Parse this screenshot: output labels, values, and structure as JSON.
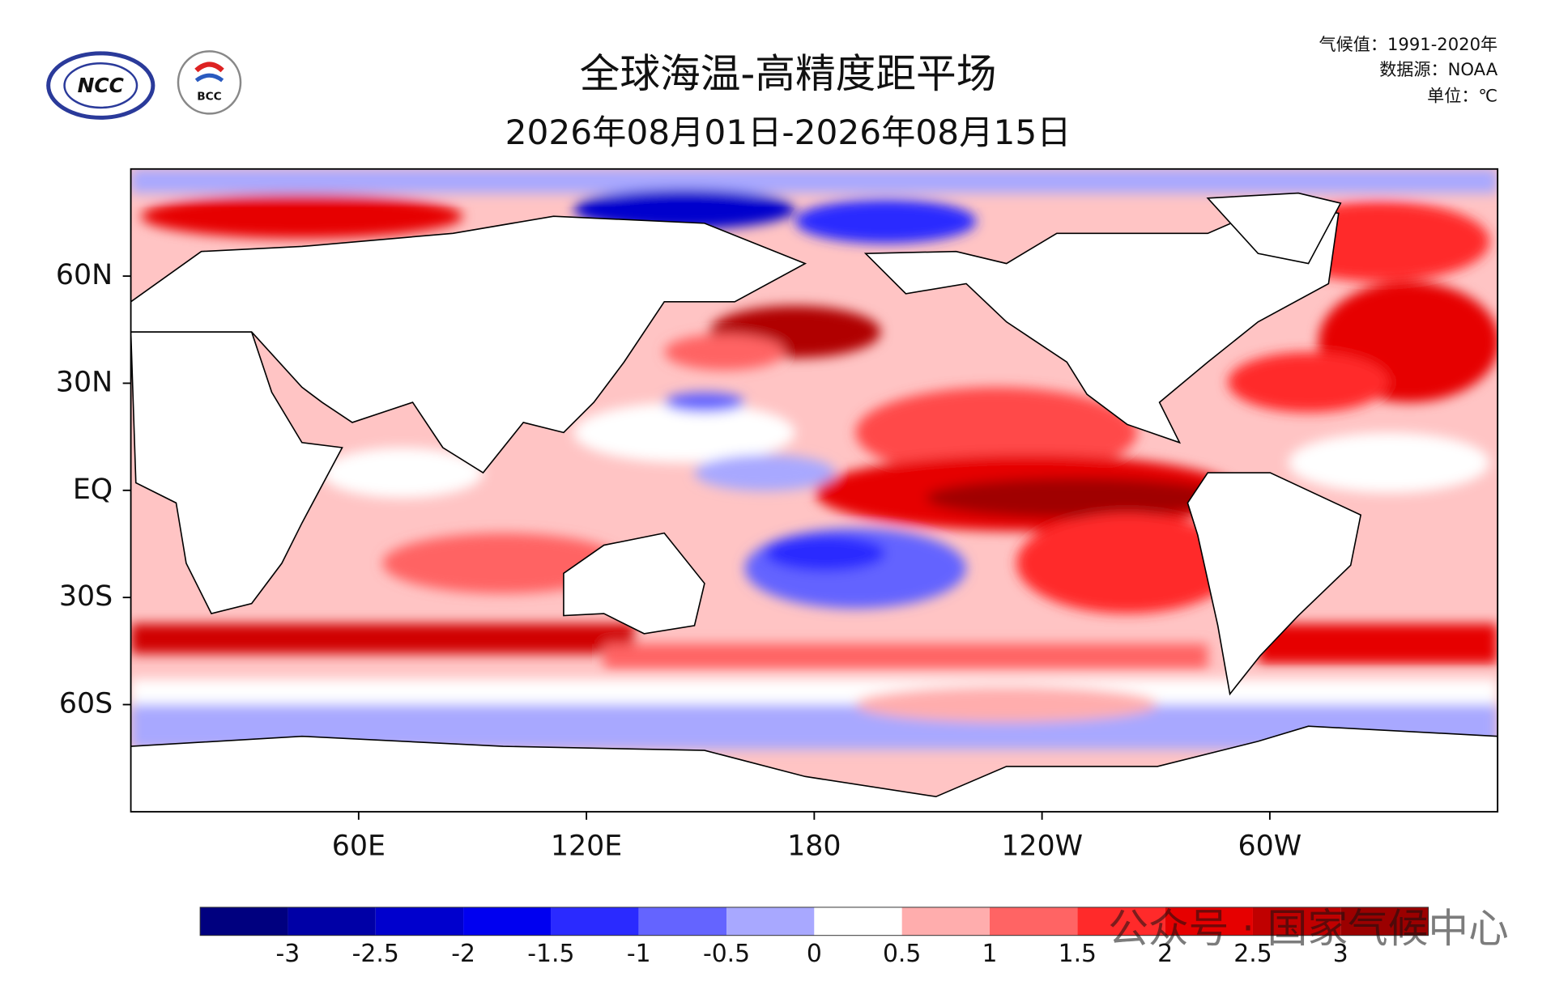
{
  "logos": [
    "NCC",
    "BCC"
  ],
  "title": "全球海温-高精度距平场",
  "subtitle": "2026年08月01日-2026年08月15日",
  "notes": [
    "气候值：1991-2020年",
    "数据源：NOAA",
    "单位：℃"
  ],
  "map": {
    "xlim": [
      0,
      360
    ],
    "ylim": [
      -90,
      90
    ],
    "xticks": [
      {
        "value": 60,
        "label": "60E"
      },
      {
        "value": 120,
        "label": "120E"
      },
      180,
      {
        "value": 240,
        "label": "120W"
      },
      {
        "value": 300,
        "label": "60W"
      }
    ],
    "yticks": [
      {
        "value": 60,
        "label": "60N"
      },
      {
        "value": 30,
        "label": "30N"
      },
      {
        "value": 0,
        "label": "EQ"
      },
      {
        "value": -30,
        "label": "30S"
      },
      {
        "value": -60,
        "label": "60S"
      }
    ]
  },
  "colorbar": {
    "ticks": [
      -3,
      -2.5,
      -2,
      -1.5,
      -1,
      -0.5,
      0,
      0.5,
      1,
      1.5,
      2,
      2.5,
      3
    ],
    "colors": [
      "#00007f",
      "#0000a6",
      "#0000cd",
      "#0000f0",
      "#2a2aff",
      "#6464ff",
      "#a8a8ff",
      "#ffffff",
      "#ffadad",
      "#ff6464",
      "#ff2a2a",
      "#e60000",
      "#c00000",
      "#9b0000"
    ]
  },
  "watermark": "公众号 · 国家气候中心"
}
